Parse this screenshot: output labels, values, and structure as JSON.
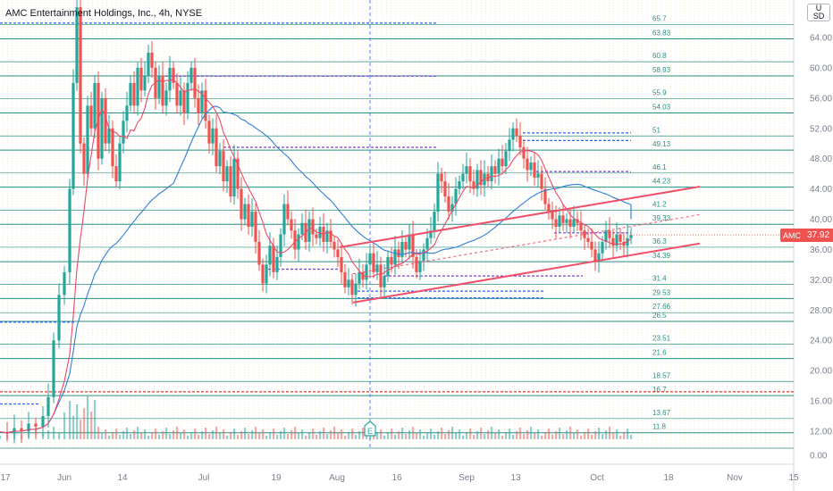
{
  "header": {
    "title": "AMC Entertainment Holdings, Inc., 4h, NYSE",
    "currency_lines": [
      "U",
      "SD"
    ]
  },
  "last_price": {
    "symbol": "AMC",
    "value": "37.92",
    "color": "#ef5350"
  },
  "colors": {
    "candle_up": "#26a69a",
    "candle_down": "#ef5350",
    "level_line": "#2a8f82",
    "ma_fast": "#e84a6a",
    "ma_slow": "#2f7fd6",
    "channel": "#ef4f6a",
    "dotted_blue": "#2962ff",
    "dotted_purple": "#7b3fd1",
    "dotted_red": "#e53935"
  },
  "chart_data": {
    "type": "candlestick",
    "y_axis": {
      "min": 0,
      "max": 68,
      "ticks": [
        "0.00",
        "12.00",
        "16.00",
        "20.00",
        "24.00",
        "28.00",
        "32.00",
        "36.00",
        "40.00",
        "44.00",
        "48.00",
        "52.00",
        "56.00",
        "60.00",
        "64.00"
      ]
    },
    "x_axis": {
      "ticks": [
        "17",
        "Jun",
        "14",
        "Jul",
        "19",
        "Aug",
        "16",
        "Sep",
        "13",
        "Oct",
        "18",
        "Nov",
        "15"
      ]
    },
    "levels": [
      65.7,
      63.83,
      60.8,
      58.93,
      55.9,
      54.03,
      51,
      49.13,
      46.1,
      44.23,
      41.2,
      39.33,
      36.3,
      34.39,
      31.4,
      29.53,
      27.66,
      26.5,
      23.51,
      21.6,
      18.57,
      16.7,
      13.67,
      11.8
    ],
    "level_labels": [
      "65.7",
      "63.83",
      "60.8",
      "58.93",
      "55.9",
      "54.03",
      "51",
      "49.13",
      "46.1",
      "44.23",
      "41.2",
      "39.33",
      "36.3",
      "34.39",
      "31.4",
      "29.53",
      "27.66",
      "26.5",
      "23.51",
      "21.6",
      "18.57",
      "16.7",
      "13.67",
      "11.8"
    ],
    "earnings_marker": "E",
    "ohlc_close_path": [
      [
        0,
        11.9
      ],
      [
        8,
        11.7
      ],
      [
        16,
        12.4
      ],
      [
        24,
        12.0
      ],
      [
        32,
        13.0
      ],
      [
        40,
        12.6
      ],
      [
        48,
        14.0
      ],
      [
        54,
        16.5
      ],
      [
        60,
        24.0
      ],
      [
        66,
        30.0
      ],
      [
        72,
        33.0
      ],
      [
        78,
        44.0
      ],
      [
        82,
        58.0
      ],
      [
        86,
        68.0
      ],
      [
        90,
        50.0
      ],
      [
        94,
        46.0
      ],
      [
        98,
        55.0
      ],
      [
        102,
        52.0
      ],
      [
        106,
        58.0
      ],
      [
        110,
        48.0
      ],
      [
        114,
        56.0
      ],
      [
        118,
        50.0
      ],
      [
        122,
        52.0
      ],
      [
        126,
        47.0
      ],
      [
        130,
        45.0
      ],
      [
        134,
        50.0
      ],
      [
        138,
        53.0
      ],
      [
        142,
        55.0
      ],
      [
        146,
        58.0
      ],
      [
        150,
        55.0
      ],
      [
        154,
        60.0
      ],
      [
        158,
        57.0
      ],
      [
        162,
        59.0
      ],
      [
        166,
        62.0
      ],
      [
        170,
        60.0
      ],
      [
        174,
        56.0
      ],
      [
        178,
        59.0
      ],
      [
        182,
        55.0
      ],
      [
        186,
        57.0
      ],
      [
        190,
        60.0
      ],
      [
        194,
        58.0
      ],
      [
        198,
        55.0
      ],
      [
        202,
        57.0
      ],
      [
        206,
        54.0
      ],
      [
        210,
        58.0
      ],
      [
        214,
        60.0
      ],
      [
        218,
        56.0
      ],
      [
        222,
        54.0
      ],
      [
        226,
        57.0
      ],
      [
        230,
        53.0
      ],
      [
        234,
        50.0
      ],
      [
        238,
        52.0
      ],
      [
        242,
        47.0
      ],
      [
        246,
        49.0
      ],
      [
        250,
        45.0
      ],
      [
        254,
        47.0
      ],
      [
        258,
        43.0
      ],
      [
        262,
        48.0
      ],
      [
        266,
        44.0
      ],
      [
        270,
        40.0
      ],
      [
        274,
        42.0
      ],
      [
        278,
        39.0
      ],
      [
        282,
        41.0
      ],
      [
        286,
        37.0
      ],
      [
        290,
        34.0
      ],
      [
        294,
        31.5
      ],
      [
        298,
        34.0
      ],
      [
        302,
        36.5
      ],
      [
        306,
        33.0
      ],
      [
        310,
        35.0
      ],
      [
        314,
        38.0
      ],
      [
        318,
        42.0
      ],
      [
        322,
        40.0
      ],
      [
        326,
        38.5
      ],
      [
        330,
        36.0
      ],
      [
        334,
        38.0
      ],
      [
        338,
        39.5
      ],
      [
        342,
        37.0
      ],
      [
        346,
        40.0
      ],
      [
        350,
        38.0
      ],
      [
        354,
        37.5
      ],
      [
        358,
        39.0
      ],
      [
        362,
        37.0
      ],
      [
        366,
        38.5
      ],
      [
        370,
        37.0
      ],
      [
        374,
        36.0
      ],
      [
        378,
        35.0
      ],
      [
        382,
        33.0
      ],
      [
        386,
        31.0
      ],
      [
        390,
        32.0
      ],
      [
        394,
        30.0
      ],
      [
        398,
        31.5
      ],
      [
        402,
        33.0
      ],
      [
        406,
        32.0
      ],
      [
        410,
        34.0
      ],
      [
        414,
        35.5
      ],
      [
        418,
        33.0
      ],
      [
        422,
        34.0
      ],
      [
        426,
        31.0
      ],
      [
        430,
        32.5
      ],
      [
        434,
        35.0
      ],
      [
        438,
        34.0
      ],
      [
        442,
        36.0
      ],
      [
        446,
        35.0
      ],
      [
        450,
        37.0
      ],
      [
        454,
        36.0
      ],
      [
        458,
        38.0
      ],
      [
        462,
        35.0
      ],
      [
        466,
        33.0
      ],
      [
        470,
        34.5
      ],
      [
        474,
        36.0
      ],
      [
        478,
        37.5
      ],
      [
        482,
        38.5
      ],
      [
        486,
        41.0
      ],
      [
        490,
        46.0
      ],
      [
        494,
        45.0
      ],
      [
        498,
        43.0
      ],
      [
        502,
        41.0
      ],
      [
        506,
        42.0
      ],
      [
        510,
        44.0
      ],
      [
        514,
        45.0
      ],
      [
        518,
        46.0
      ],
      [
        522,
        47.0
      ],
      [
        526,
        45.0
      ],
      [
        530,
        44.0
      ],
      [
        534,
        46.5
      ],
      [
        538,
        44.5
      ],
      [
        542,
        46.0
      ],
      [
        546,
        45.0
      ],
      [
        550,
        47.0
      ],
      [
        554,
        46.0
      ],
      [
        558,
        48.0
      ],
      [
        562,
        47.0
      ],
      [
        566,
        49.0
      ],
      [
        570,
        50.5
      ],
      [
        574,
        52.0
      ],
      [
        578,
        51.0
      ],
      [
        582,
        49.5
      ],
      [
        586,
        48.0
      ],
      [
        590,
        46.5
      ],
      [
        594,
        47.5
      ],
      [
        598,
        45.5
      ],
      [
        602,
        46.0
      ],
      [
        606,
        44.0
      ],
      [
        610,
        42.0
      ],
      [
        614,
        41.0
      ],
      [
        618,
        40.0
      ],
      [
        622,
        39.0
      ],
      [
        626,
        40.5
      ],
      [
        630,
        39.5
      ],
      [
        634,
        40.0
      ],
      [
        638,
        39.0
      ],
      [
        642,
        40.0
      ],
      [
        646,
        39.5
      ],
      [
        650,
        38.5
      ],
      [
        654,
        37.5
      ],
      [
        658,
        37.0
      ],
      [
        662,
        36.0
      ],
      [
        666,
        34.5
      ],
      [
        670,
        35.5
      ],
      [
        674,
        37.0
      ],
      [
        678,
        38.5
      ],
      [
        682,
        37.5
      ],
      [
        686,
        36.5
      ],
      [
        690,
        38.0
      ],
      [
        694,
        37.0
      ],
      [
        698,
        36.5
      ],
      [
        702,
        37.5
      ],
      [
        706,
        37.92
      ]
    ]
  }
}
